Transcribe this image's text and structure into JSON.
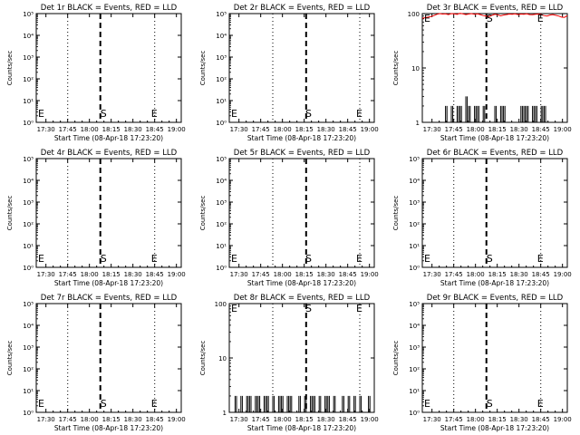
{
  "figure": {
    "common_xlabel": "Start Time (08-Apr-18 17:23:20)",
    "ylabel": "Counts/sec",
    "xticks": [
      "17:30",
      "17:45",
      "18:00",
      "18:15",
      "18:30",
      "18:45",
      "19:00"
    ],
    "colors": {
      "events": "#000000",
      "lld": "#ff0000"
    }
  },
  "chart_data": [
    {
      "type": "line",
      "title": "Det 1r BLACK = Events, RED = LLD",
      "ylabel": "Counts/sec",
      "xlabel": "Start Time (08-Apr-18 17:23:20)",
      "yscale": "log",
      "ylim": [
        1,
        100000
      ],
      "yticklabels": [
        "10⁰",
        "10¹",
        "10²",
        "10³",
        "10⁴",
        "10⁵"
      ],
      "x_unit": "minutes after 17:23:20",
      "xlim": [
        0,
        100
      ],
      "xticks": [
        "17:30",
        "17:45",
        "18:00",
        "18:15",
        "18:30",
        "18:45",
        "19:00"
      ],
      "markers": [
        {
          "label": "E",
          "x": 0
        },
        {
          "label": "S",
          "x": 46.7
        },
        {
          "label": "E",
          "x": 81.7
        }
      ],
      "dotted_lines_x": [
        21.7,
        81.7
      ],
      "dashed_line_x": 44.2,
      "series": []
    },
    {
      "type": "line",
      "title": "Det 2r BLACK = Events, RED = LLD",
      "ylabel": "Counts/sec",
      "xlabel": "Start Time (08-Apr-18 17:23:20)",
      "yscale": "log",
      "ylim": [
        1,
        100000
      ],
      "yticklabels": [
        "10⁰",
        "10¹",
        "10²",
        "10³",
        "10⁴",
        "10⁵"
      ],
      "x_unit": "minutes after 17:23:20",
      "xlim": [
        0,
        100
      ],
      "xticks": [
        "17:30",
        "17:45",
        "18:00",
        "18:15",
        "18:30",
        "18:45",
        "19:00"
      ],
      "markers": [
        {
          "label": "E",
          "x": 0
        },
        {
          "label": "S",
          "x": 55
        },
        {
          "label": "E",
          "x": 90
        }
      ],
      "dotted_lines_x": [
        30,
        90
      ],
      "dashed_line_x": 53,
      "series": []
    },
    {
      "type": "line",
      "title": "Det 3r BLACK = Events, RED = LLD",
      "ylabel": "Counts/sec",
      "xlabel": "Start Time (08-Apr-18 17:23:20)",
      "yscale": "log",
      "ylim": [
        1,
        100
      ],
      "yticklabels": [
        "1",
        "10",
        "100"
      ],
      "x_unit": "minutes after 17:23:20",
      "xlim": [
        0,
        100
      ],
      "xticks": [
        "17:30",
        "17:45",
        "18:00",
        "18:15",
        "18:30",
        "18:45",
        "19:00"
      ],
      "markers": [
        {
          "label": "E",
          "x": 0
        },
        {
          "label": "S",
          "x": 46.7
        },
        {
          "label": "E",
          "x": 81.7
        }
      ],
      "dotted_lines_x": [
        21.7,
        81.7
      ],
      "dashed_line_x": 44.2,
      "series": [
        {
          "color": "#ff0000",
          "x": [
            0,
            2,
            4,
            6,
            8,
            10,
            12,
            14,
            16,
            18,
            20,
            22,
            24,
            26,
            28,
            30,
            32,
            34,
            36,
            38,
            40,
            42,
            44,
            46,
            48,
            50,
            52,
            54,
            56,
            58,
            60,
            62,
            64,
            66,
            68,
            70,
            72,
            74,
            76,
            78,
            80,
            82,
            84,
            86,
            88,
            90,
            92,
            94,
            96,
            98,
            100
          ],
          "y": [
            82,
            84,
            86,
            88,
            92,
            97,
            100,
            98,
            99,
            96,
            100,
            99,
            97,
            101,
            99,
            96,
            98,
            100,
            97,
            99,
            96,
            92,
            90,
            88,
            93,
            97,
            95,
            91,
            94,
            96,
            98,
            97,
            99,
            96,
            98,
            97,
            99,
            96,
            95,
            97,
            98,
            96,
            92,
            90,
            94,
            96,
            93,
            90,
            86,
            85,
            92
          ]
        },
        {
          "color": "#000000",
          "x": [
            16,
            18,
            20,
            22,
            24,
            26,
            28,
            30,
            32,
            34,
            36,
            38,
            40,
            42,
            48,
            50,
            52,
            54,
            56,
            58,
            68,
            70,
            72,
            74,
            76,
            78,
            80,
            82,
            84
          ],
          "y": [
            2,
            1,
            2,
            1,
            2,
            2,
            1,
            3,
            2,
            1,
            2,
            2,
            1,
            2,
            1,
            2,
            1,
            2,
            2,
            1,
            2,
            2,
            2,
            1,
            2,
            2,
            1,
            2,
            2
          ]
        }
      ]
    },
    {
      "type": "line",
      "title": "Det 4r BLACK = Events, RED = LLD",
      "ylabel": "Counts/sec",
      "xlabel": "Start Time (08-Apr-18 17:23:20)",
      "yscale": "log",
      "ylim": [
        1,
        100000
      ],
      "yticklabels": [
        "10⁰",
        "10¹",
        "10²",
        "10³",
        "10⁴",
        "10⁵"
      ],
      "x_unit": "minutes after 17:23:20",
      "xlim": [
        0,
        100
      ],
      "xticks": [
        "17:30",
        "17:45",
        "18:00",
        "18:15",
        "18:30",
        "18:45",
        "19:00"
      ],
      "markers": [
        {
          "label": "E",
          "x": 0
        },
        {
          "label": "S",
          "x": 46.7
        },
        {
          "label": "E",
          "x": 81.7
        }
      ],
      "dotted_lines_x": [
        21.7,
        81.7
      ],
      "dashed_line_x": 44.2,
      "series": []
    },
    {
      "type": "line",
      "title": "Det 5r BLACK = Events, RED = LLD",
      "ylabel": "Counts/sec",
      "xlabel": "Start Time (08-Apr-18 17:23:20)",
      "yscale": "log",
      "ylim": [
        1,
        100000
      ],
      "yticklabels": [
        "10⁰",
        "10¹",
        "10²",
        "10³",
        "10⁴",
        "10⁵"
      ],
      "x_unit": "minutes after 17:23:20",
      "xlim": [
        0,
        100
      ],
      "xticks": [
        "17:30",
        "17:45",
        "18:00",
        "18:15",
        "18:30",
        "18:45",
        "19:00"
      ],
      "markers": [
        {
          "label": "E",
          "x": 0
        },
        {
          "label": "S",
          "x": 55
        },
        {
          "label": "E",
          "x": 90
        }
      ],
      "dotted_lines_x": [
        30,
        90
      ],
      "dashed_line_x": 53,
      "series": []
    },
    {
      "type": "line",
      "title": "Det 6r BLACK = Events, RED = LLD",
      "ylabel": "Counts/sec",
      "xlabel": "Start Time (08-Apr-18 17:23:20)",
      "yscale": "log",
      "ylim": [
        1,
        100000
      ],
      "yticklabels": [
        "10⁰",
        "10¹",
        "10²",
        "10³",
        "10⁴",
        "10⁵"
      ],
      "x_unit": "minutes after 17:23:20",
      "xlim": [
        0,
        100
      ],
      "xticks": [
        "17:30",
        "17:45",
        "18:00",
        "18:15",
        "18:30",
        "18:45",
        "19:00"
      ],
      "markers": [
        {
          "label": "E",
          "x": 0
        },
        {
          "label": "S",
          "x": 46.7
        },
        {
          "label": "E",
          "x": 81.7
        }
      ],
      "dotted_lines_x": [
        21.7,
        81.7
      ],
      "dashed_line_x": 44.2,
      "series": []
    },
    {
      "type": "line",
      "title": "Det 7r BLACK = Events, RED = LLD",
      "ylabel": "Counts/sec",
      "xlabel": "Start Time (08-Apr-18 17:23:20)",
      "yscale": "log",
      "ylim": [
        1,
        100000
      ],
      "yticklabels": [
        "10⁰",
        "10¹",
        "10²",
        "10³",
        "10⁴",
        "10⁵"
      ],
      "x_unit": "minutes after 17:23:20",
      "xlim": [
        0,
        100
      ],
      "xticks": [
        "17:30",
        "17:45",
        "18:00",
        "18:15",
        "18:30",
        "18:45",
        "19:00"
      ],
      "markers": [
        {
          "label": "E",
          "x": 0
        },
        {
          "label": "S",
          "x": 46.7
        },
        {
          "label": "E",
          "x": 81.7
        }
      ],
      "dotted_lines_x": [
        21.7,
        81.7
      ],
      "dashed_line_x": 44.2,
      "series": []
    },
    {
      "type": "line",
      "title": "Det 8r BLACK = Events, RED = LLD",
      "ylabel": "Counts/sec",
      "xlabel": "Start Time (08-Apr-18 17:23:20)",
      "yscale": "log",
      "ylim": [
        1,
        100
      ],
      "yticklabels": [
        "1",
        "10",
        "100"
      ],
      "x_unit": "minutes after 17:23:20",
      "xlim": [
        0,
        100
      ],
      "xticks": [
        "17:30",
        "17:45",
        "18:00",
        "18:15",
        "18:30",
        "18:45",
        "19:00"
      ],
      "markers": [
        {
          "label": "E",
          "x": 0
        },
        {
          "label": "S",
          "x": 55
        },
        {
          "label": "E",
          "x": 90
        }
      ],
      "dotted_lines_x": [
        30,
        90
      ],
      "dashed_line_x": 53,
      "series": [
        {
          "color": "#000000",
          "x": [
            2,
            4,
            6,
            8,
            10,
            12,
            14,
            16,
            18,
            20,
            22,
            24,
            26,
            28,
            30,
            32,
            34,
            36,
            38,
            40,
            42,
            44,
            46,
            48,
            50,
            52,
            54,
            56,
            58,
            60,
            62,
            64,
            66,
            68,
            70,
            72,
            74,
            76,
            78,
            80,
            82,
            84,
            86,
            88,
            90,
            92,
            94,
            96
          ],
          "y": [
            1,
            2,
            1,
            2,
            1,
            2,
            2,
            1,
            2,
            2,
            1,
            2,
            2,
            1,
            2,
            1,
            2,
            2,
            1,
            2,
            2,
            1,
            1,
            2,
            1,
            2,
            1,
            2,
            2,
            1,
            2,
            1,
            2,
            2,
            1,
            2,
            1,
            1,
            2,
            1,
            2,
            1,
            2,
            1,
            2,
            1,
            1,
            2
          ]
        }
      ]
    },
    {
      "type": "line",
      "title": "Det 9r BLACK = Events, RED = LLD",
      "ylabel": "Counts/sec",
      "xlabel": "Start Time (08-Apr-18 17:23:20)",
      "yscale": "log",
      "ylim": [
        1,
        100000
      ],
      "yticklabels": [
        "10⁰",
        "10¹",
        "10²",
        "10³",
        "10⁴",
        "10⁵"
      ],
      "x_unit": "minutes after 17:23:20",
      "xlim": [
        0,
        100
      ],
      "xticks": [
        "17:30",
        "17:45",
        "18:00",
        "18:15",
        "18:30",
        "18:45",
        "19:00"
      ],
      "markers": [
        {
          "label": "E",
          "x": 0
        },
        {
          "label": "S",
          "x": 46.7
        },
        {
          "label": "E",
          "x": 81.7
        }
      ],
      "dotted_lines_x": [
        21.7,
        81.7
      ],
      "dashed_line_x": 44.2,
      "series": []
    }
  ]
}
